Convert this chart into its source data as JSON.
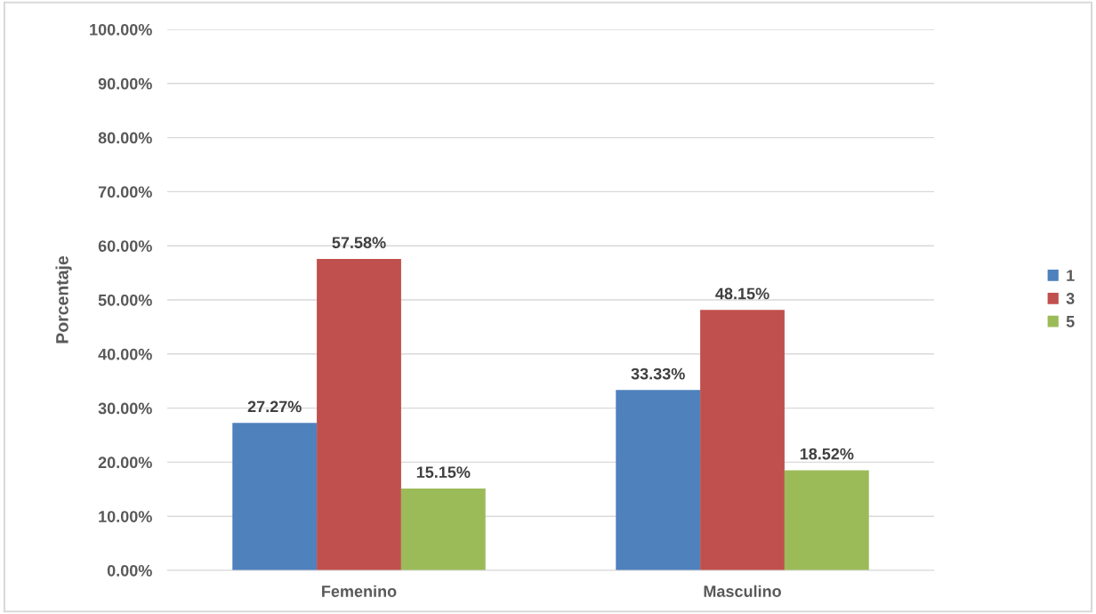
{
  "chart_data": {
    "type": "bar",
    "ylabel": "Porcentaje",
    "categories": [
      "Femenino",
      "Masculino"
    ],
    "series": [
      {
        "name": "1",
        "color": "#4f81bd",
        "values": [
          27.27,
          33.33
        ],
        "value_labels": [
          "27.27%",
          "33.33%"
        ]
      },
      {
        "name": "3",
        "color": "#c0504d",
        "values": [
          57.58,
          48.15
        ],
        "value_labels": [
          "57.58%",
          "48.15%"
        ]
      },
      {
        "name": "5",
        "color": "#9bbb59",
        "values": [
          15.15,
          18.52
        ],
        "value_labels": [
          "15.15%",
          "18.52%"
        ]
      }
    ],
    "ylim": [
      0,
      100
    ],
    "yticks": [
      {
        "value": 0,
        "label": "0.00%"
      },
      {
        "value": 10,
        "label": "10.00%"
      },
      {
        "value": 20,
        "label": "20.00%"
      },
      {
        "value": 30,
        "label": "30.00%"
      },
      {
        "value": 40,
        "label": "40.00%"
      },
      {
        "value": 50,
        "label": "50.00%"
      },
      {
        "value": 60,
        "label": "60.00%"
      },
      {
        "value": 70,
        "label": "70.00%"
      },
      {
        "value": 80,
        "label": "80.00%"
      },
      {
        "value": 90,
        "label": "90.00%"
      },
      {
        "value": 100,
        "label": "100.00%"
      }
    ],
    "grid": "y",
    "legend": "right"
  }
}
